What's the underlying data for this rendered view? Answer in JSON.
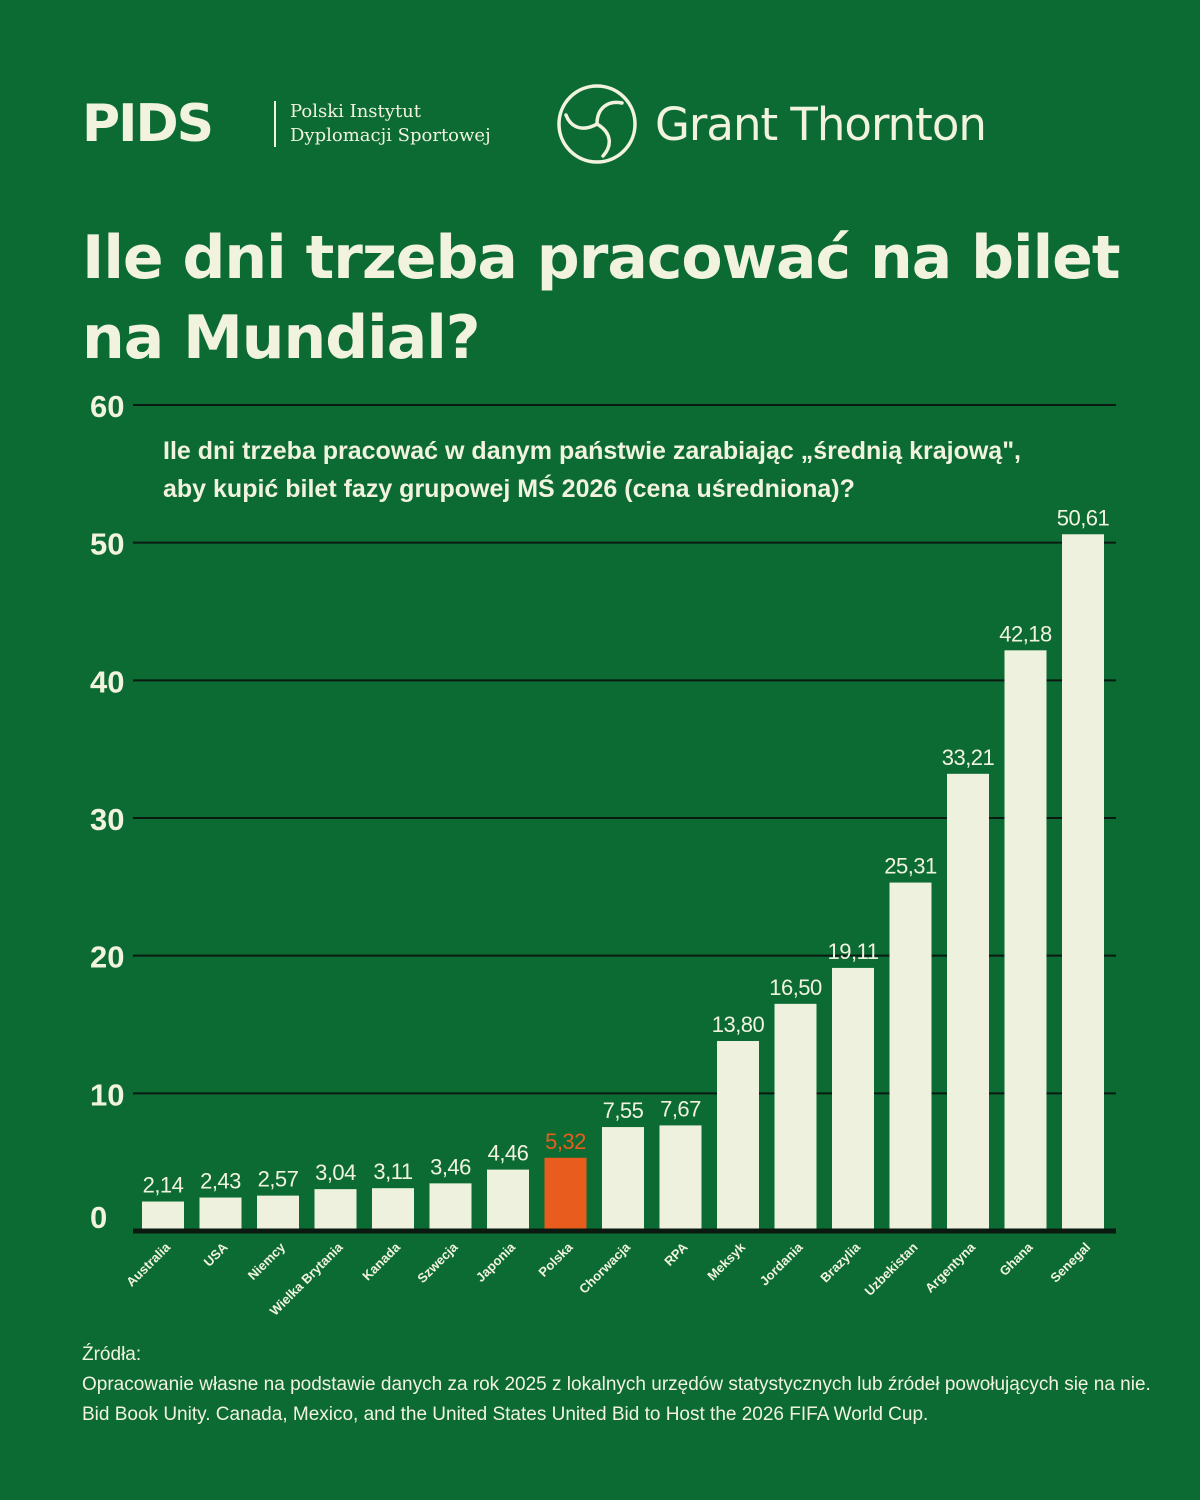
{
  "header": {
    "logo_pids": "PIDS",
    "institute_line1": "Polski Instytut",
    "institute_line2": "Dyplomacji Sportowej",
    "logo_gt": "Grant Thornton"
  },
  "colors": {
    "background": "#0b6b33",
    "bar": "#eef1de",
    "highlight": "#e85d1e",
    "text": "#f2f3df",
    "grid": "#0a1a10"
  },
  "chart_data": {
    "type": "bar",
    "title": "Ile dni trzeba pracować na bilet na Mundial?",
    "subtitle_line1": "Ile dni trzeba pracować w danym państwie zarabiając „średnią krajową\",",
    "subtitle_line2": "aby kupić bilet fazy grupowej MŚ 2026 (cena uśredniona)?",
    "categories": [
      "Australia",
      "USA",
      "Niemcy",
      "Wielka Brytania",
      "Kanada",
      "Szwecja",
      "Japonia",
      "Polska",
      "Chorwacja",
      "RPA",
      "Meksyk",
      "Jordania",
      "Brazylia",
      "Uzbekistan",
      "Argentyna",
      "Ghana",
      "Senegal"
    ],
    "values": [
      2.14,
      2.43,
      2.57,
      3.04,
      3.11,
      3.46,
      4.46,
      5.32,
      7.55,
      7.67,
      13.8,
      16.5,
      19.11,
      25.31,
      33.21,
      42.18,
      50.61
    ],
    "value_labels": [
      "2,14",
      "2,43",
      "2,57",
      "3,04",
      "3,11",
      "3,46",
      "4,46",
      "5,32",
      "7,55",
      "7,67",
      "13,80",
      "16,50",
      "19,11",
      "25,31",
      "33,21",
      "42,18",
      "50,61"
    ],
    "highlight_category": "Polska",
    "ylim": [
      0,
      60
    ],
    "yticks": [
      0,
      10,
      20,
      30,
      40,
      50,
      60
    ],
    "grid": true,
    "xlabel": "",
    "ylabel": ""
  },
  "sources": {
    "heading": "Źródła:",
    "line1": "Opracowanie własne na podstawie danych za rok 2025 z lokalnych urzędów statystycznych lub źródeł powołujących się na nie.",
    "line2": "Bid Book Unity. Canada, Mexico, and the United States United Bid to Host the 2026 FIFA World Cup."
  }
}
